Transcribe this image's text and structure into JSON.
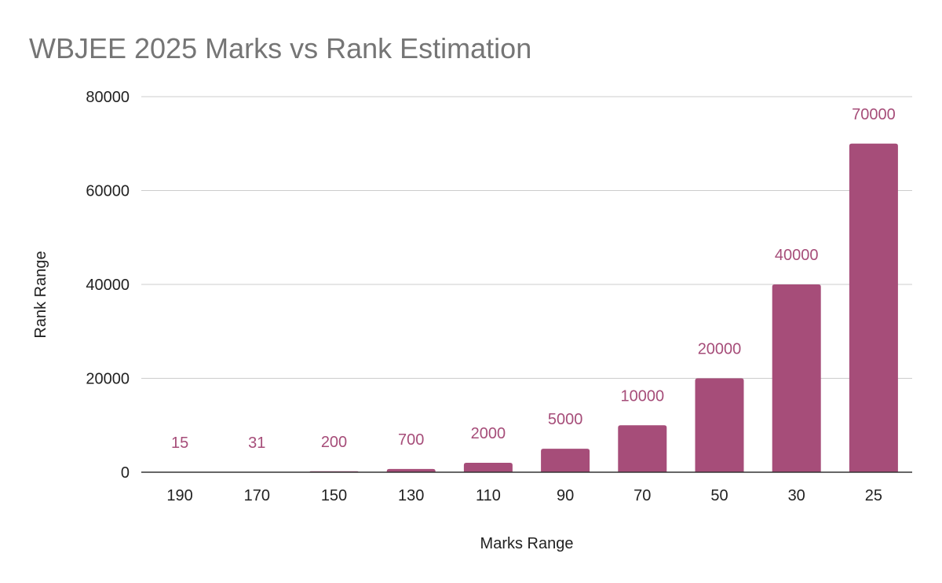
{
  "chart_data": {
    "type": "bar",
    "title": "WBJEE 2025 Marks vs Rank Estimation",
    "xlabel": "Marks Range",
    "ylabel": "Rank Range",
    "categories": [
      "190",
      "170",
      "150",
      "130",
      "110",
      "90",
      "70",
      "50",
      "30",
      "25"
    ],
    "values": [
      15,
      31,
      200,
      700,
      2000,
      5000,
      10000,
      20000,
      40000,
      70000
    ],
    "data_labels": [
      "15",
      "31",
      "200",
      "700",
      "2000",
      "5000",
      "10000",
      "20000",
      "40000",
      "70000"
    ],
    "ylim": [
      0,
      80000
    ],
    "yticks": [
      "0",
      "20000",
      "40000",
      "60000",
      "80000"
    ],
    "ytick_values": [
      0,
      20000,
      40000,
      60000,
      80000
    ],
    "grid": true,
    "legend": "none",
    "colors": {
      "bar": "#a64d79",
      "title": "#757575",
      "grid": "#cccccc",
      "axis": "#333333"
    }
  }
}
